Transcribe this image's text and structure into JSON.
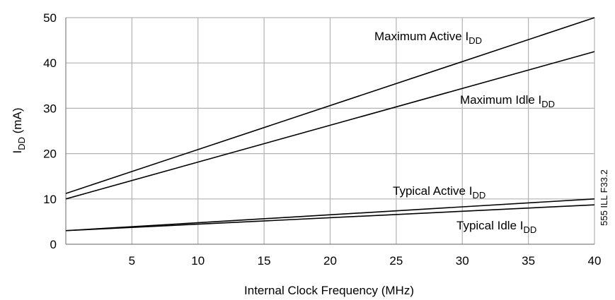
{
  "chart_data": {
    "type": "line",
    "xlabel": "Internal Clock Frequency (MHz)",
    "ylabel": {
      "main": "I",
      "sub": "DD",
      "unit": " (mA)"
    },
    "xlim": [
      0,
      40
    ],
    "ylim": [
      0,
      50
    ],
    "xticks": [
      5,
      10,
      15,
      20,
      25,
      30,
      35,
      40
    ],
    "yticks": [
      0,
      10,
      20,
      30,
      40,
      50
    ],
    "grid": true,
    "series": [
      {
        "name": "Maximum Active I",
        "sub": "DD",
        "x": [
          0,
          40
        ],
        "y": [
          11.2,
          50
        ]
      },
      {
        "name": "Maximum Idle I",
        "sub": "DD",
        "x": [
          0,
          40
        ],
        "y": [
          10,
          42.5
        ]
      },
      {
        "name": "Typical Active I",
        "sub": "DD",
        "x": [
          0,
          40
        ],
        "y": [
          3,
          10
        ]
      },
      {
        "name": "Typical Idle I",
        "sub": "DD",
        "x": [
          0,
          40
        ],
        "y": [
          3,
          8.7
        ]
      }
    ],
    "annotation": "555 ILL F33.2"
  }
}
